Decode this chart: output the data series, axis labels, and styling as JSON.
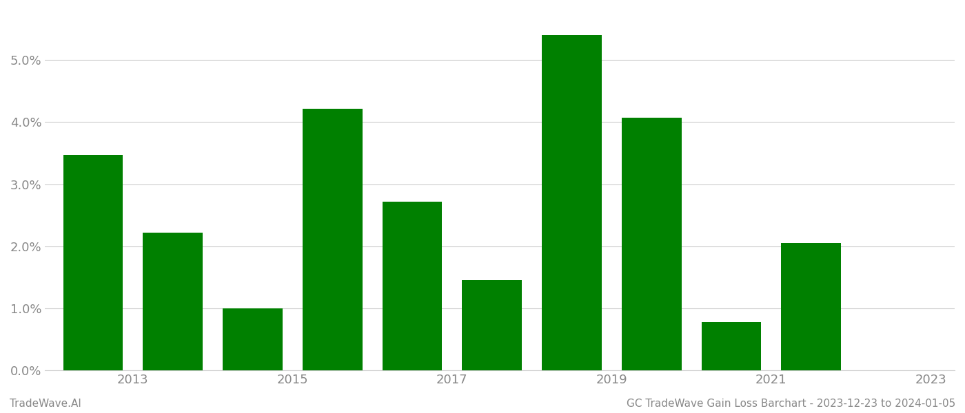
{
  "years": [
    2013,
    2014,
    2015,
    2016,
    2017,
    2018,
    2019,
    2020,
    2021,
    2022
  ],
  "values": [
    0.0347,
    0.0222,
    0.01,
    0.0422,
    0.0272,
    0.0145,
    0.054,
    0.0407,
    0.0078,
    0.0205
  ],
  "bar_color": "#008000",
  "footer_left": "TradeWave.AI",
  "footer_right": "GC TradeWave Gain Loss Barchart - 2023-12-23 to 2024-01-05",
  "ylim": [
    0,
    0.058
  ],
  "ytick_values": [
    0.0,
    0.01,
    0.02,
    0.03,
    0.04,
    0.05
  ],
  "background_color": "#ffffff",
  "grid_color": "#cccccc",
  "tick_label_color": "#888888",
  "footer_color": "#888888",
  "bar_width": 0.75,
  "figsize": [
    14.0,
    6.0
  ],
  "dpi": 100,
  "tick_years": [
    2013,
    2015,
    2017,
    2019,
    2021,
    2023
  ],
  "font_size_ticks": 13,
  "font_size_footer": 11
}
